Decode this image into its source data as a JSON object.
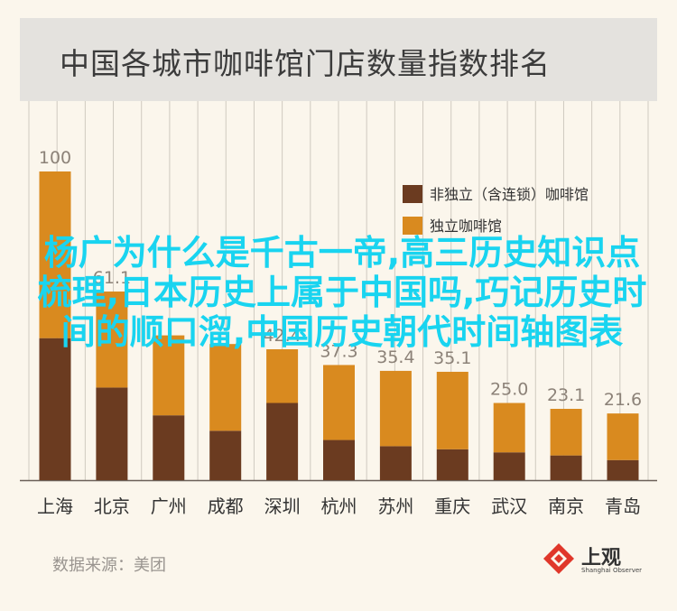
{
  "title": "中国各城市咖啡馆门店数量指数排名",
  "source": "数据来源：美团",
  "logo": {
    "name": "上观",
    "sub": "Shanghai Observer"
  },
  "overlay_text": "杨广为什么是千古一帝,高三历史知识点梳理,日本历史上属于中国吗,巧记历史时间的顺口溜,中国历史朝代时间轴图表",
  "chart_data": {
    "type": "bar",
    "stacked": true,
    "categories": [
      "上海",
      "北京",
      "广州",
      "成都",
      "深圳",
      "杭州",
      "苏州",
      "重庆",
      "武汉",
      "南京",
      "青岛"
    ],
    "totals": [
      100,
      61.1,
      46.9,
      44.1,
      42.4,
      37.3,
      35.4,
      35.1,
      25.0,
      23.1,
      21.6
    ],
    "total_labels": [
      "100",
      "61.1",
      "",
      "",
      "42.4",
      "37.3",
      "35.4",
      "35.1",
      "25.0",
      "23.1",
      "21.6"
    ],
    "series": [
      {
        "name": "非独立（含连锁）咖啡馆",
        "values": [
          46,
          30,
          21,
          16,
          25,
          13,
          11,
          10,
          9,
          8,
          6.5
        ]
      },
      {
        "name": "独立咖啡馆",
        "values": [
          54,
          31.1,
          25.9,
          28.1,
          17.4,
          24.3,
          24.4,
          25.1,
          16.0,
          15.1,
          15.1
        ]
      }
    ],
    "ylim": [
      0,
      100
    ],
    "legend_position": "top-right",
    "grid": "vertical"
  },
  "colors": {
    "dark": "#6b3b20",
    "light": "#d98a1f",
    "grid": "#cfc9bf",
    "label": "#8c8278",
    "axis_text": "#333333"
  }
}
